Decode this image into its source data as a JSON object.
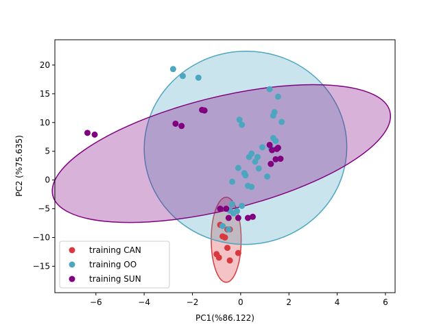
{
  "chart_data": {
    "type": "scatter",
    "title": "",
    "xlabel": "PC1(%86.122)",
    "ylabel": "PC2 (%75.635)",
    "xlim": [
      -7.7,
      6.4
    ],
    "ylim": [
      -19.6,
      24.4
    ],
    "xticks": [
      -6,
      -4,
      -2,
      0,
      2,
      4,
      6
    ],
    "yticks": [
      -15,
      -10,
      -5,
      0,
      5,
      10,
      15,
      20
    ],
    "grid": false,
    "legend_position": "lower-left",
    "series": [
      {
        "name": "training CAN",
        "color": "#d9393e",
        "points": [
          [
            -0.85,
            -7.8
          ],
          [
            -0.55,
            -8.6
          ],
          [
            -0.45,
            -8.6
          ],
          [
            -0.65,
            -10.0
          ],
          [
            -0.75,
            -9.8
          ],
          [
            -0.55,
            -11.8
          ],
          [
            -1.0,
            -12.9
          ],
          [
            -0.9,
            -13.5
          ],
          [
            -0.45,
            -14.0
          ],
          [
            -0.1,
            -12.7
          ]
        ],
        "ellipse": {
          "cx": -0.6,
          "cy": -10.4,
          "rx": 0.62,
          "ry": 7.4,
          "angle_deg": 0
        }
      },
      {
        "name": "training OO",
        "color": "#4da6bf",
        "points": [
          [
            -2.8,
            19.3
          ],
          [
            -2.4,
            18.1
          ],
          [
            -1.75,
            17.8
          ],
          [
            1.2,
            15.8
          ],
          [
            1.55,
            14.5
          ],
          [
            1.4,
            11.8
          ],
          [
            1.35,
            11.2
          ],
          [
            1.7,
            10.1
          ],
          [
            -0.05,
            10.5
          ],
          [
            0.05,
            9.6
          ],
          [
            1.35,
            7.3
          ],
          [
            1.45,
            6.8
          ],
          [
            1.25,
            5.6
          ],
          [
            0.9,
            5.7
          ],
          [
            0.45,
            4.6
          ],
          [
            0.35,
            4.0
          ],
          [
            0.7,
            4.0
          ],
          [
            0.6,
            3.2
          ],
          [
            0.75,
            2.0
          ],
          [
            -0.1,
            2.1
          ],
          [
            0.15,
            1.2
          ],
          [
            0.2,
            0.8
          ],
          [
            1.1,
            0.6
          ],
          [
            0.3,
            -1.0
          ],
          [
            0.45,
            -1.2
          ],
          [
            -0.35,
            -0.3
          ],
          [
            -0.35,
            -4.2
          ],
          [
            0.05,
            -4.5
          ],
          [
            -0.15,
            -5.4
          ],
          [
            -0.3,
            -5.8
          ],
          [
            -0.45,
            -5.3
          ],
          [
            -0.75,
            -8.0
          ],
          [
            -0.5,
            -8.6
          ]
        ],
        "ellipse": {
          "cx": 0.2,
          "cy": 5.6,
          "rx": 4.2,
          "ry": 16.8,
          "angle_deg": -5
        }
      },
      {
        "name": "training SUN",
        "color": "#800080",
        "points": [
          [
            -6.35,
            8.2
          ],
          [
            -6.05,
            7.9
          ],
          [
            -2.7,
            9.8
          ],
          [
            -2.45,
            9.4
          ],
          [
            -1.6,
            12.2
          ],
          [
            -1.5,
            12.1
          ],
          [
            1.2,
            6.1
          ],
          [
            1.3,
            5.2
          ],
          [
            1.55,
            5.6
          ],
          [
            1.5,
            5.4
          ],
          [
            1.45,
            3.6
          ],
          [
            1.65,
            3.7
          ],
          [
            1.25,
            2.8
          ],
          [
            -0.85,
            -5.0
          ],
          [
            -0.6,
            -5.0
          ],
          [
            -0.1,
            -6.6
          ],
          [
            0.3,
            -6.6
          ],
          [
            0.5,
            -6.4
          ],
          [
            -0.5,
            -6.6
          ]
        ],
        "ellipse": {
          "cx": -0.8,
          "cy": 4.6,
          "rx": 7.2,
          "ry": 9.8,
          "angle_deg": -14
        }
      }
    ]
  }
}
